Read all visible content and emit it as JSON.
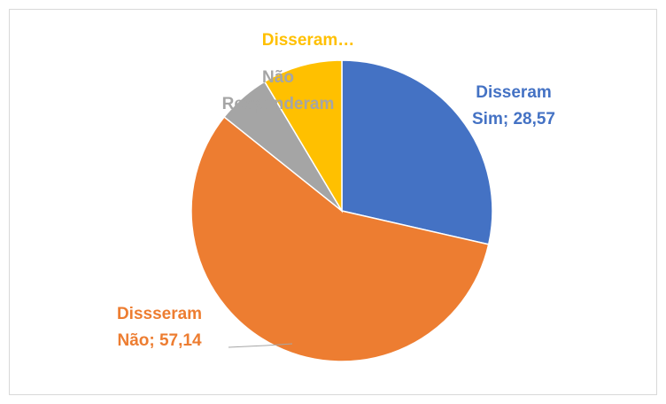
{
  "chart_data": {
    "type": "pie",
    "labels": [
      [
        "Disseram",
        "Sim; 28,57"
      ],
      [
        "Dissseram",
        "Não; 57,14"
      ],
      [
        "Não",
        "Responderam"
      ],
      [
        "Disseram…"
      ]
    ],
    "values": [
      28.57,
      57.14,
      5.71,
      8.57
    ],
    "colors": [
      "#4472c4",
      "#ed7d31",
      "#a5a5a5",
      "#ffc000"
    ]
  }
}
